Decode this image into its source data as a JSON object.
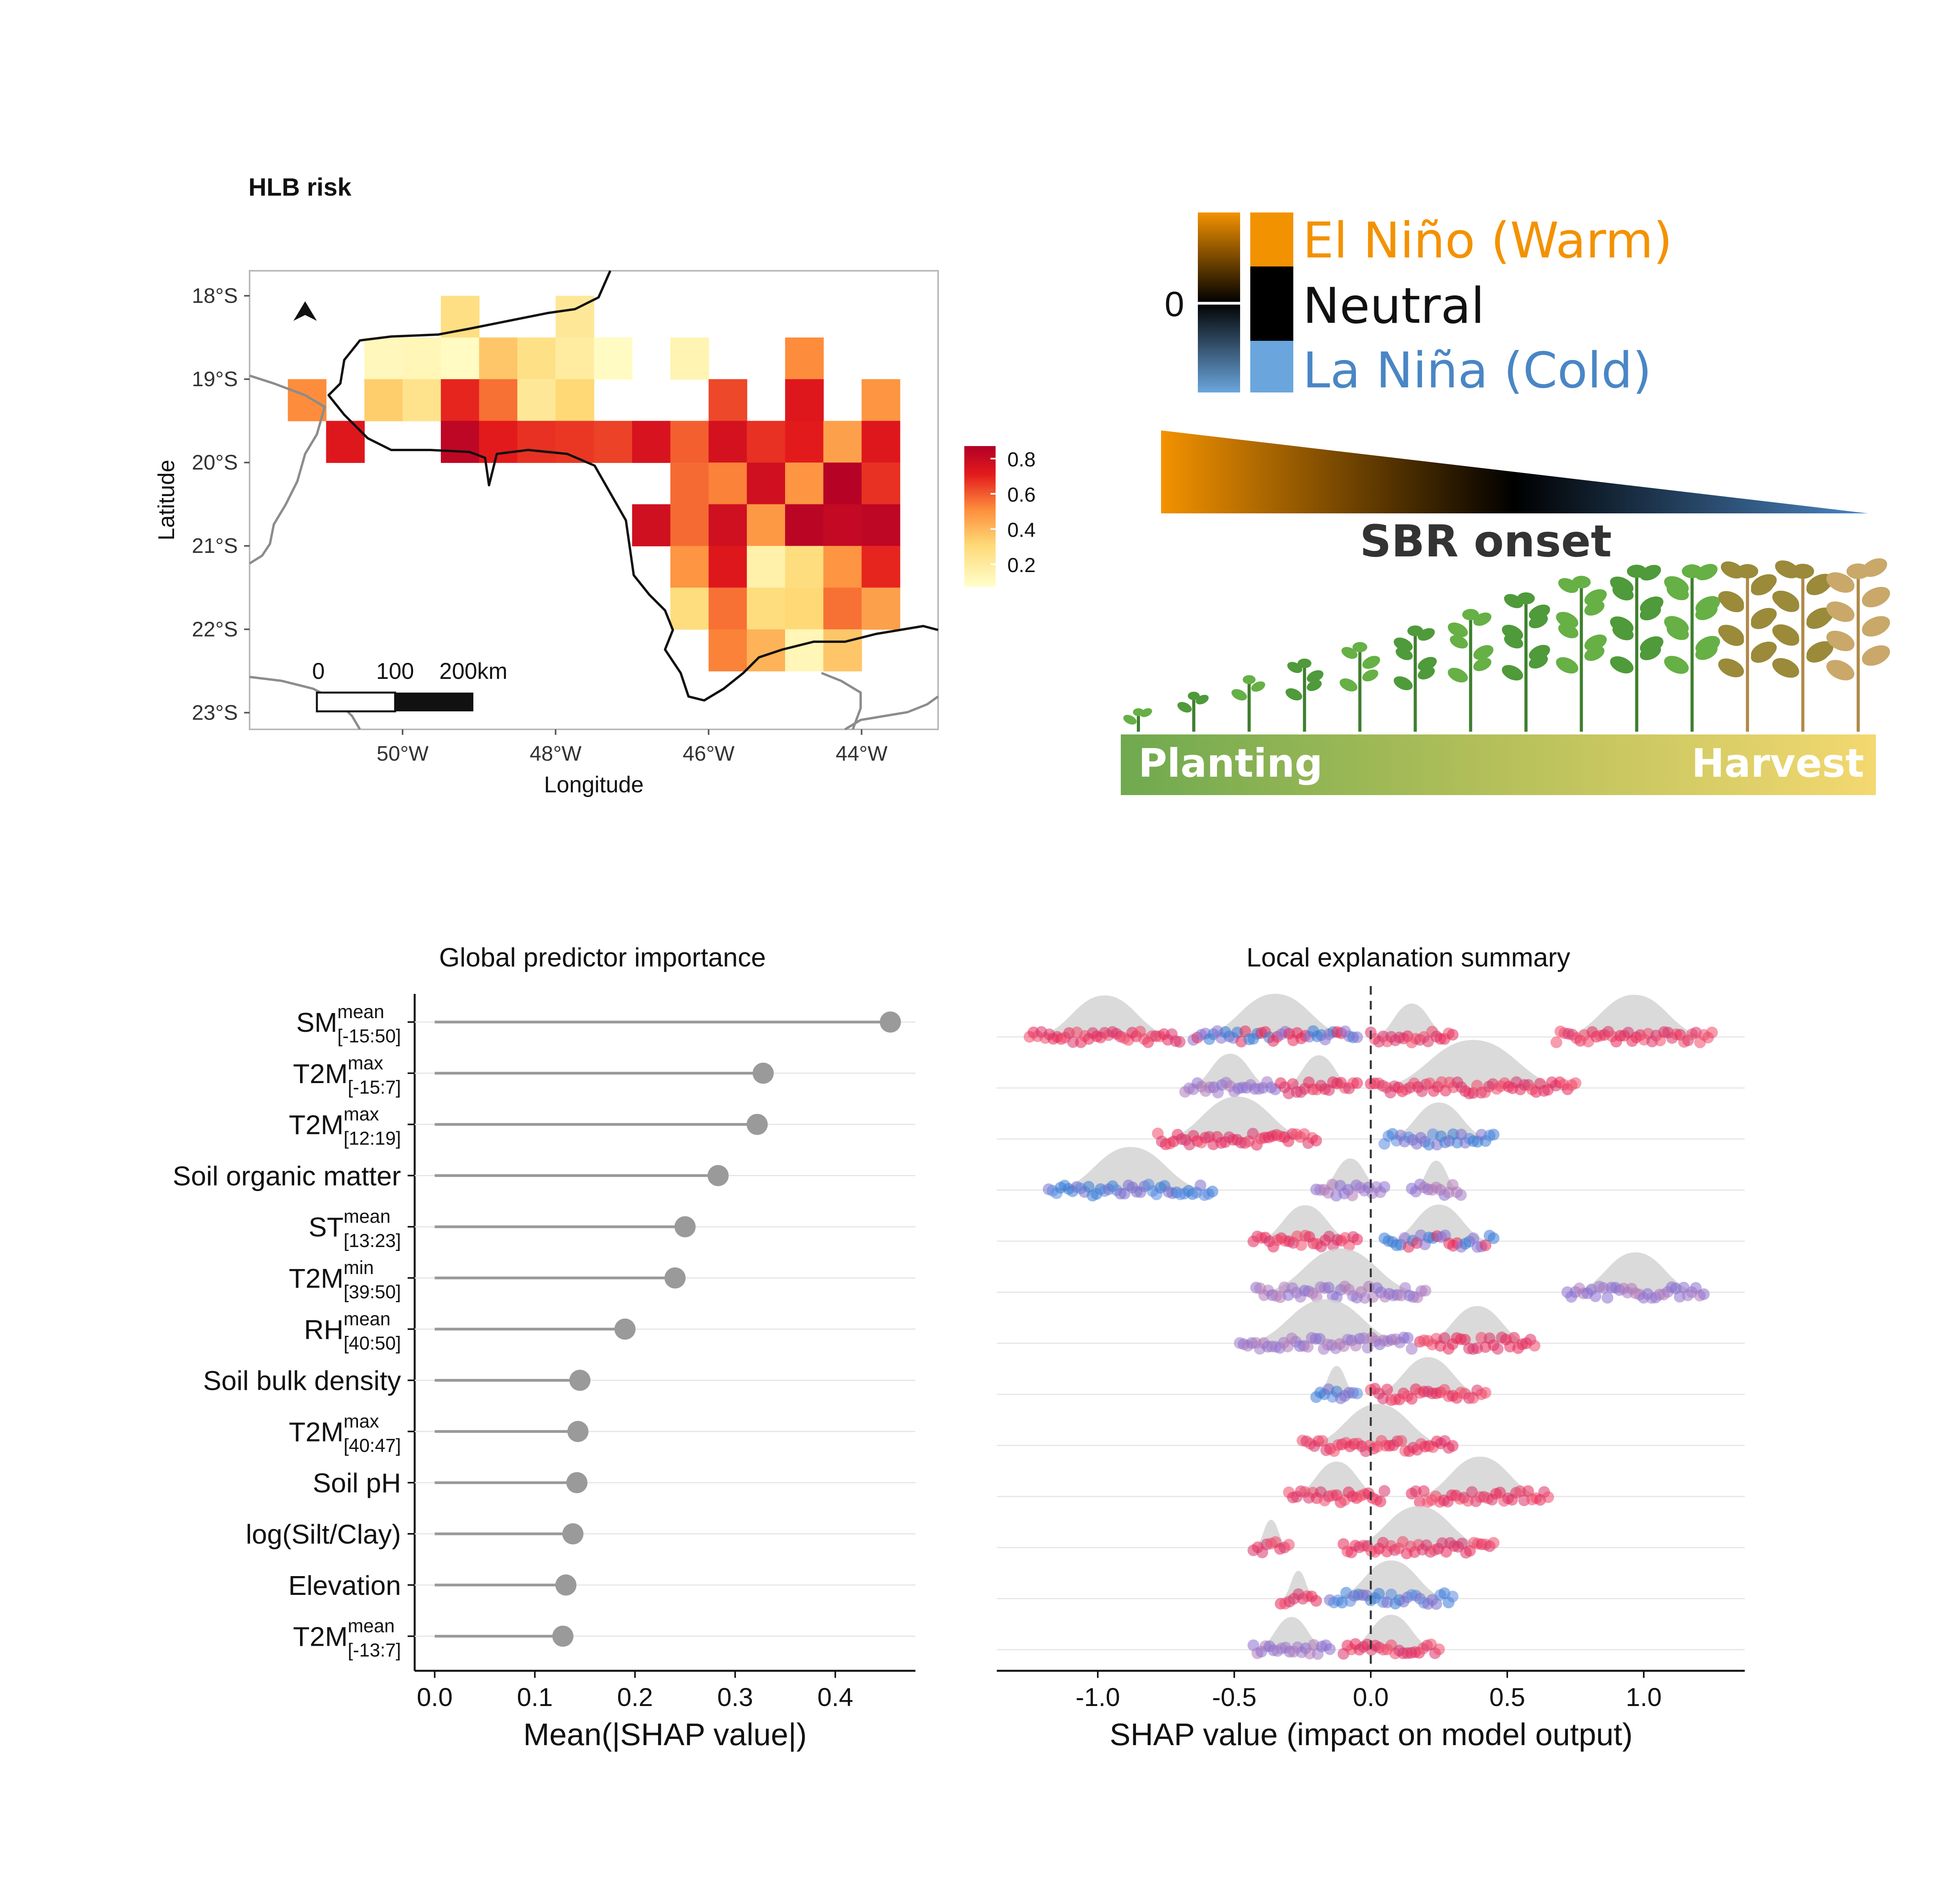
{
  "colors": {
    "heat_low": "#fff7bc",
    "heat_mid": "#fd8d3c",
    "heat_high": "#b10026",
    "el_nino": "#f39200",
    "neutral": "#111111",
    "la_nina": "#4a86c5",
    "grey_dot": "#9a9a9a",
    "shap_red": "#e8285a",
    "shap_blue": "#3a7bd5",
    "planting_green": "#6fa94f",
    "harvest_yellow": "#f4d870"
  },
  "map_panel": {
    "title": "HLB risk",
    "xlabel": "Longitude",
    "ylabel": "Latitude",
    "x_ticks": [
      "50°W",
      "48°W",
      "46°W",
      "44°W"
    ],
    "y_ticks": [
      "18°S",
      "19°S",
      "20°S",
      "21°S",
      "22°S",
      "23°S"
    ],
    "scale_bar": {
      "labels": [
        "0",
        "100",
        "200km"
      ]
    },
    "north_arrow": "north-arrow-icon",
    "legend_ticks": [
      "0.8",
      "0.6",
      "0.4",
      "0.2"
    ]
  },
  "enso_panel": {
    "zero_label": "0",
    "el_nino": "El Niño (Warm)",
    "neutral": "Neutral",
    "la_nina": "La Niña (Cold)",
    "onset_label": "SBR onset",
    "planting": "Planting",
    "harvest": "Harvest"
  },
  "chart_data": [
    {
      "type": "heatmap",
      "title": "HLB risk",
      "xlabel": "Longitude",
      "ylabel": "Latitude",
      "xlim": [
        -52.0,
        -43.0
      ],
      "ylim": [
        -23.2,
        -17.7
      ],
      "colorbar_range": [
        0.1,
        0.9
      ],
      "cell_size_deg": 0.5,
      "cells": [
        {
          "lon": -49.25,
          "lat": -18.25,
          "risk": 0.27
        },
        {
          "lon": -47.75,
          "lat": -18.25,
          "risk": 0.22
        },
        {
          "lon": -50.25,
          "lat": -18.75,
          "risk": 0.14
        },
        {
          "lon": -49.75,
          "lat": -18.75,
          "risk": 0.15
        },
        {
          "lon": -49.25,
          "lat": -18.75,
          "risk": 0.12
        },
        {
          "lon": -48.75,
          "lat": -18.75,
          "risk": 0.35
        },
        {
          "lon": -48.25,
          "lat": -18.75,
          "risk": 0.26
        },
        {
          "lon": -47.75,
          "lat": -18.75,
          "risk": 0.2
        },
        {
          "lon": -47.25,
          "lat": -18.75,
          "risk": 0.12
        },
        {
          "lon": -46.25,
          "lat": -18.75,
          "risk": 0.16
        },
        {
          "lon": -44.75,
          "lat": -18.75,
          "risk": 0.5
        },
        {
          "lon": -51.25,
          "lat": -19.25,
          "risk": 0.5
        },
        {
          "lon": -50.25,
          "lat": -19.25,
          "risk": 0.33
        },
        {
          "lon": -49.75,
          "lat": -19.25,
          "risk": 0.25
        },
        {
          "lon": -49.25,
          "lat": -19.25,
          "risk": 0.68
        },
        {
          "lon": -48.75,
          "lat": -19.25,
          "risk": 0.55
        },
        {
          "lon": -48.25,
          "lat": -19.25,
          "risk": 0.22
        },
        {
          "lon": -47.75,
          "lat": -19.25,
          "risk": 0.3
        },
        {
          "lon": -45.75,
          "lat": -19.25,
          "risk": 0.62
        },
        {
          "lon": -44.75,
          "lat": -19.25,
          "risk": 0.72
        },
        {
          "lon": -43.75,
          "lat": -19.25,
          "risk": 0.48
        },
        {
          "lon": -50.75,
          "lat": -19.75,
          "risk": 0.72
        },
        {
          "lon": -49.25,
          "lat": -19.75,
          "risk": 0.85
        },
        {
          "lon": -48.75,
          "lat": -19.75,
          "risk": 0.7
        },
        {
          "lon": -48.25,
          "lat": -19.75,
          "risk": 0.66
        },
        {
          "lon": -47.75,
          "lat": -19.75,
          "risk": 0.65
        },
        {
          "lon": -47.25,
          "lat": -19.75,
          "risk": 0.63
        },
        {
          "lon": -46.75,
          "lat": -19.75,
          "risk": 0.75
        },
        {
          "lon": -46.25,
          "lat": -19.75,
          "risk": 0.58
        },
        {
          "lon": -45.75,
          "lat": -19.75,
          "risk": 0.76
        },
        {
          "lon": -45.25,
          "lat": -19.75,
          "risk": 0.66
        },
        {
          "lon": -44.75,
          "lat": -19.75,
          "risk": 0.7
        },
        {
          "lon": -44.25,
          "lat": -19.75,
          "risk": 0.45
        },
        {
          "lon": -43.75,
          "lat": -19.75,
          "risk": 0.72
        },
        {
          "lon": -46.25,
          "lat": -20.25,
          "risk": 0.56
        },
        {
          "lon": -45.75,
          "lat": -20.25,
          "risk": 0.52
        },
        {
          "lon": -45.25,
          "lat": -20.25,
          "risk": 0.78
        },
        {
          "lon": -44.75,
          "lat": -20.25,
          "risk": 0.48
        },
        {
          "lon": -44.25,
          "lat": -20.25,
          "risk": 0.88
        },
        {
          "lon": -43.75,
          "lat": -20.25,
          "risk": 0.66
        },
        {
          "lon": -46.75,
          "lat": -20.75,
          "risk": 0.78
        },
        {
          "lon": -46.25,
          "lat": -20.75,
          "risk": 0.56
        },
        {
          "lon": -45.75,
          "lat": -20.75,
          "risk": 0.78
        },
        {
          "lon": -45.25,
          "lat": -20.75,
          "risk": 0.47
        },
        {
          "lon": -44.75,
          "lat": -20.75,
          "risk": 0.86
        },
        {
          "lon": -44.25,
          "lat": -20.75,
          "risk": 0.83
        },
        {
          "lon": -43.75,
          "lat": -20.75,
          "risk": 0.85
        },
        {
          "lon": -46.25,
          "lat": -21.25,
          "risk": 0.48
        },
        {
          "lon": -45.75,
          "lat": -21.25,
          "risk": 0.72
        },
        {
          "lon": -45.25,
          "lat": -21.25,
          "risk": 0.18
        },
        {
          "lon": -44.75,
          "lat": -21.25,
          "risk": 0.28
        },
        {
          "lon": -44.25,
          "lat": -21.25,
          "risk": 0.48
        },
        {
          "lon": -43.75,
          "lat": -21.25,
          "risk": 0.68
        },
        {
          "lon": -46.25,
          "lat": -21.75,
          "risk": 0.28
        },
        {
          "lon": -45.75,
          "lat": -21.75,
          "risk": 0.55
        },
        {
          "lon": -45.25,
          "lat": -21.75,
          "risk": 0.28
        },
        {
          "lon": -44.75,
          "lat": -21.75,
          "risk": 0.3
        },
        {
          "lon": -44.25,
          "lat": -21.75,
          "risk": 0.55
        },
        {
          "lon": -43.75,
          "lat": -21.75,
          "risk": 0.45
        },
        {
          "lon": -45.75,
          "lat": -22.25,
          "risk": 0.52
        },
        {
          "lon": -45.25,
          "lat": -22.25,
          "risk": 0.4
        },
        {
          "lon": -44.75,
          "lat": -22.25,
          "risk": 0.15
        },
        {
          "lon": -44.25,
          "lat": -22.25,
          "risk": 0.35
        }
      ]
    },
    {
      "type": "scatter",
      "title": "Global predictor importance",
      "xlabel": "Mean(|SHAP value|)",
      "ylabel": "",
      "xlim": [
        -0.02,
        0.48
      ],
      "x_ticks": [
        "0.0",
        "0.1",
        "0.2",
        "0.3",
        "0.4"
      ],
      "predictors": [
        {
          "base": "SM",
          "sup": "mean",
          "sub": "[-15:50]",
          "value": 0.455
        },
        {
          "base": "T2M",
          "sup": "max",
          "sub": "[-15:7]",
          "value": 0.328
        },
        {
          "base": "T2M",
          "sup": "max",
          "sub": "[12:19]",
          "value": 0.322
        },
        {
          "base": "Soil organic matter",
          "sup": "",
          "sub": "",
          "value": 0.283
        },
        {
          "base": "ST",
          "sup": "mean",
          "sub": "[13:23]",
          "value": 0.25
        },
        {
          "base": "T2M",
          "sup": "min",
          "sub": "[39:50]",
          "value": 0.24
        },
        {
          "base": "RH",
          "sup": "mean",
          "sub": "[40:50]",
          "value": 0.19
        },
        {
          "base": "Soil bulk density",
          "sup": "",
          "sub": "",
          "value": 0.145
        },
        {
          "base": "T2M",
          "sup": "max",
          "sub": "[40:47]",
          "value": 0.143
        },
        {
          "base": "Soil pH",
          "sup": "",
          "sub": "",
          "value": 0.142
        },
        {
          "base": "log(Silt/Clay)",
          "sup": "",
          "sub": "",
          "value": 0.138
        },
        {
          "base": "Elevation",
          "sup": "",
          "sub": "",
          "value": 0.131
        },
        {
          "base": "T2M",
          "sup": "mean",
          "sub": "[-13:7]",
          "value": 0.128
        }
      ]
    },
    {
      "type": "scatter",
      "title": "Local explanation summary",
      "xlabel": "SHAP value (impact on model output)",
      "ylabel": "",
      "xlim": [
        -1.37,
        1.37
      ],
      "x_ticks": [
        "-1.0",
        "-0.5",
        "0.0",
        "0.5",
        "1.0"
      ],
      "zero_line": 0.0,
      "rows": [
        {
          "clusters": [
            {
              "from": -1.25,
              "to": -0.7,
              "color": "red"
            },
            {
              "from": -0.65,
              "to": -0.05,
              "color": "mixed"
            },
            {
              "from": 0.0,
              "to": 0.3,
              "color": "red"
            },
            {
              "from": 0.68,
              "to": 1.25,
              "color": "red"
            }
          ]
        },
        {
          "clusters": [
            {
              "from": -0.68,
              "to": -0.35,
              "color": "purple"
            },
            {
              "from": -0.33,
              "to": -0.05,
              "color": "red"
            },
            {
              "from": 0.0,
              "to": 0.75,
              "color": "red"
            }
          ]
        },
        {
          "clusters": [
            {
              "from": -0.78,
              "to": -0.2,
              "color": "red"
            },
            {
              "from": 0.05,
              "to": 0.45,
              "color": "blue"
            }
          ]
        },
        {
          "clusters": [
            {
              "from": -1.18,
              "to": -0.58,
              "color": "blue"
            },
            {
              "from": -0.2,
              "to": 0.05,
              "color": "purple"
            },
            {
              "from": 0.15,
              "to": 0.33,
              "color": "purple"
            }
          ]
        },
        {
          "clusters": [
            {
              "from": -0.43,
              "to": -0.05,
              "color": "red"
            },
            {
              "from": 0.05,
              "to": 0.45,
              "color": "mixed"
            }
          ]
        },
        {
          "clusters": [
            {
              "from": -0.42,
              "to": 0.2,
              "color": "purple"
            },
            {
              "from": 0.72,
              "to": 1.22,
              "color": "purple"
            }
          ]
        },
        {
          "clusters": [
            {
              "from": -0.48,
              "to": 0.15,
              "color": "purple"
            },
            {
              "from": 0.18,
              "to": 0.6,
              "color": "red"
            }
          ]
        },
        {
          "clusters": [
            {
              "from": -0.2,
              "to": -0.05,
              "color": "blue"
            },
            {
              "from": 0.0,
              "to": 0.42,
              "color": "red"
            }
          ]
        },
        {
          "clusters": [
            {
              "from": -0.25,
              "to": 0.3,
              "color": "red"
            }
          ]
        },
        {
          "clusters": [
            {
              "from": -0.3,
              "to": 0.05,
              "color": "red"
            },
            {
              "from": 0.15,
              "to": 0.65,
              "color": "red"
            }
          ]
        },
        {
          "clusters": [
            {
              "from": -0.43,
              "to": -0.3,
              "color": "red"
            },
            {
              "from": -0.1,
              "to": 0.45,
              "color": "red"
            }
          ]
        },
        {
          "clusters": [
            {
              "from": -0.33,
              "to": -0.2,
              "color": "red"
            },
            {
              "from": -0.15,
              "to": 0.3,
              "color": "blue"
            }
          ]
        },
        {
          "clusters": [
            {
              "from": -0.43,
              "to": -0.15,
              "color": "purple"
            },
            {
              "from": -0.1,
              "to": 0.25,
              "color": "red"
            }
          ]
        }
      ]
    }
  ]
}
